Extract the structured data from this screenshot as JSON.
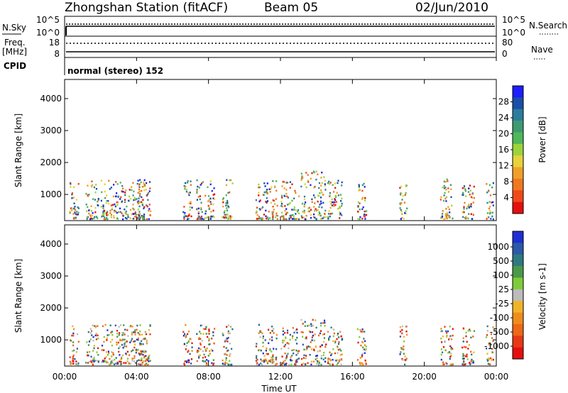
{
  "header": {
    "station": "Zhongshan Station (fitACF)",
    "beam": "Beam 05",
    "date": "02/Jun/2010"
  },
  "control": {
    "nsky_label": "N.Sky",
    "nsky_ticks": [
      "10^5",
      "10^0"
    ],
    "nsearch_label": "N.Search",
    "nsearch_ticks": [
      "10^5",
      "10^0"
    ],
    "freq_label_1": "Freq.",
    "freq_label_2": "[MHz]",
    "freq_ticks": [
      "18",
      "8"
    ],
    "nave_label": "Nave",
    "nave_ticks": [
      "80",
      "0"
    ],
    "cpid_label": "CPID",
    "cpid_text": "normal (stereo) 152"
  },
  "chart_data": [
    {
      "type": "heatmap",
      "name": "power-panel",
      "ylabel": "Slant Range [km]",
      "yticks": [
        1000,
        2000,
        3000,
        4000
      ],
      "ylim": [
        180,
        4600
      ],
      "xlim": [
        0,
        24
      ],
      "xlabel": "Time UT",
      "xticks": [
        "00:00",
        "04:00",
        "08:00",
        "12:00",
        "16:00",
        "20:00",
        "00:00"
      ],
      "colorbar": {
        "label": "Power [dB]",
        "ticks": [
          "4",
          "8",
          "12",
          "16",
          "20",
          "24",
          "28"
        ],
        "colors": [
          "#1e1eff",
          "#1a4fa8",
          "#2b7d9c",
          "#3f9a72",
          "#4fb85a",
          "#9bd43a",
          "#e6d23a",
          "#f0a028",
          "#f07820",
          "#ee4a1a",
          "#e60f0f"
        ]
      }
    },
    {
      "type": "heatmap",
      "name": "velocity-panel",
      "ylabel": "Slant Range [km]",
      "yticks": [
        1000,
        2000,
        3000,
        4000
      ],
      "ylim": [
        180,
        4600
      ],
      "xlim": [
        0,
        24
      ],
      "xlabel": "Time UT",
      "xticks": [
        "00:00",
        "04:00",
        "08:00",
        "12:00",
        "16:00",
        "20:00",
        "00:00"
      ],
      "colorbar": {
        "label": "Velocity [m s-1]",
        "ticks": [
          "1000",
          "500",
          "100",
          "25",
          "-25",
          "-100",
          "-500",
          "-1000"
        ],
        "colors": [
          "#1e2fd4",
          "#2b5aa8",
          "#2f7a80",
          "#4a9a4a",
          "#7fcc3a",
          "#bcbcbc",
          "#f0b428",
          "#f08c1e",
          "#ee6818",
          "#e63a14",
          "#e60f0f"
        ]
      }
    }
  ]
}
